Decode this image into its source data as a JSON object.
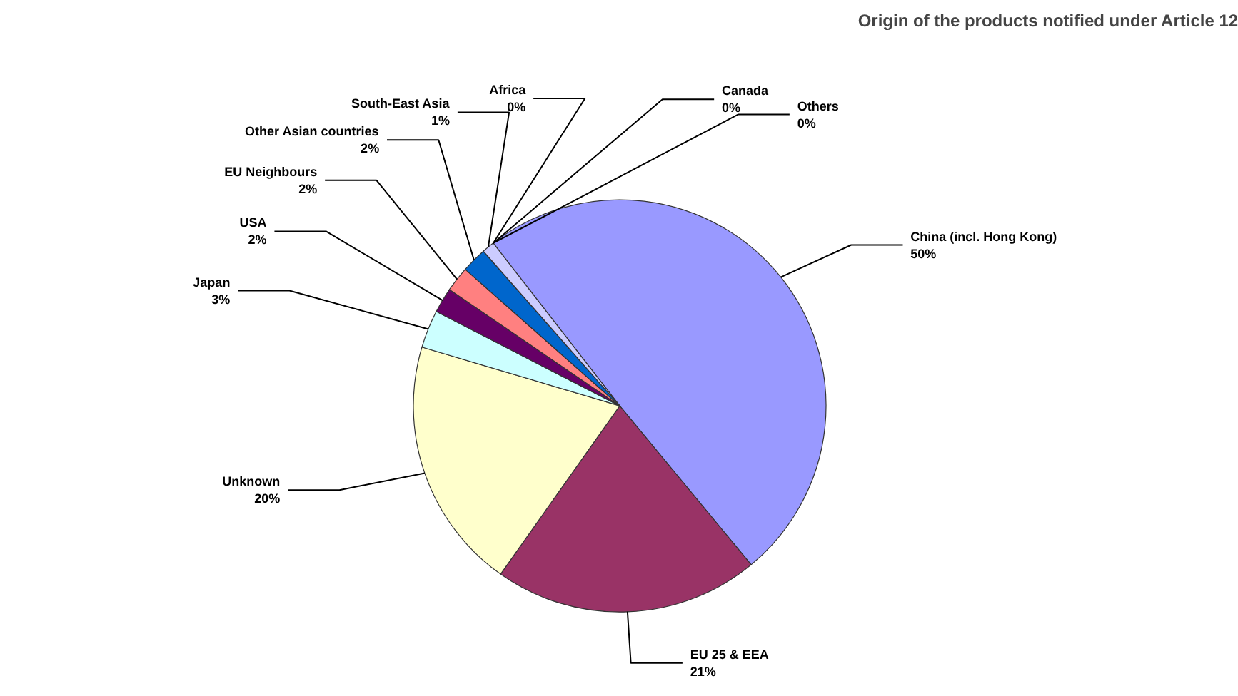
{
  "chart_data": {
    "type": "pie",
    "title": "Origin of the products notified under Article 12",
    "categories": [
      "China (incl. Hong Kong)",
      "EU 25 & EEA",
      "Unknown",
      "Japan",
      "USA",
      "EU Neighbours",
      "Other Asian countries",
      "South-East Asia",
      "Africa",
      "Canada",
      "Others"
    ],
    "values": [
      50,
      21,
      20,
      3,
      2,
      2,
      2,
      1,
      0,
      0,
      0
    ],
    "value_labels": [
      "50%",
      "21%",
      "20%",
      "3%",
      "2%",
      "2%",
      "2%",
      "1%",
      "0%",
      "0%",
      "0%"
    ],
    "colors": [
      "#9999ff",
      "#993366",
      "#ffffcc",
      "#ccffff",
      "#660066",
      "#ff8080",
      "#0066cc",
      "#ccccff",
      "#000080",
      "#ff00ff",
      "#ffcc00"
    ]
  }
}
